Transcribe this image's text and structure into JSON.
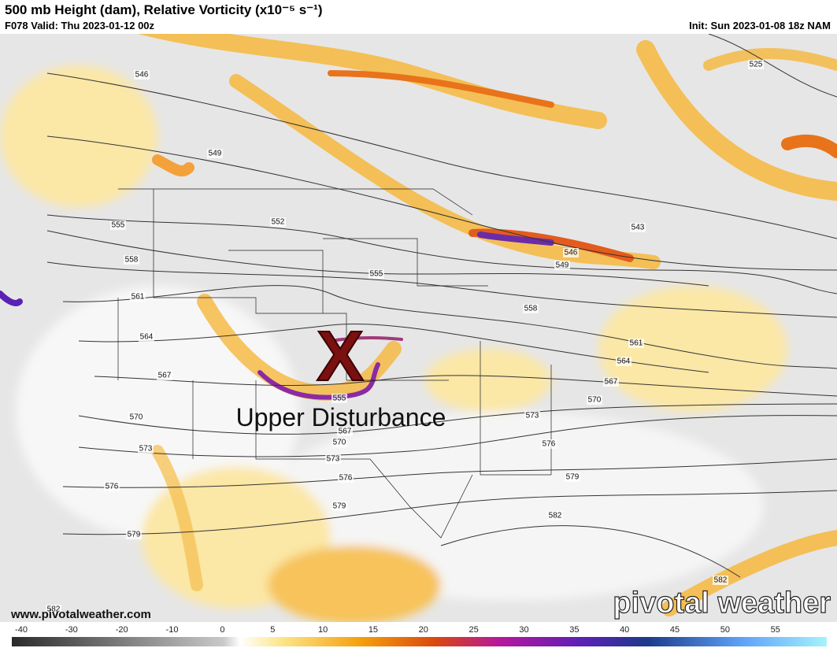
{
  "header": {
    "title": "500 mb Height (dam), Relative Vorticity (x10⁻⁵ s⁻¹)",
    "valid": "F078 Valid: Thu 2023-01-12 00z",
    "init": "Init: Sun 2023-01-08 18z NAM"
  },
  "map": {
    "marker": "X",
    "annotation": "Upper Disturbance",
    "contour_labels": [
      "546",
      "549",
      "552",
      "555",
      "558",
      "561",
      "564",
      "567",
      "570",
      "573",
      "576",
      "579",
      "555",
      "555",
      "567",
      "570",
      "573",
      "576",
      "579",
      "558",
      "561",
      "564",
      "567",
      "570",
      "573",
      "576",
      "579",
      "582",
      "582",
      "543",
      "546",
      "549",
      "525",
      "582"
    ]
  },
  "watermark": {
    "url": "www.pivotalweather.com",
    "logo": "pivotal weather"
  },
  "colorbar": {
    "ticks": [
      -40,
      -30,
      -20,
      -10,
      0,
      5,
      10,
      15,
      20,
      25,
      30,
      35,
      40,
      45,
      50,
      55
    ]
  }
}
